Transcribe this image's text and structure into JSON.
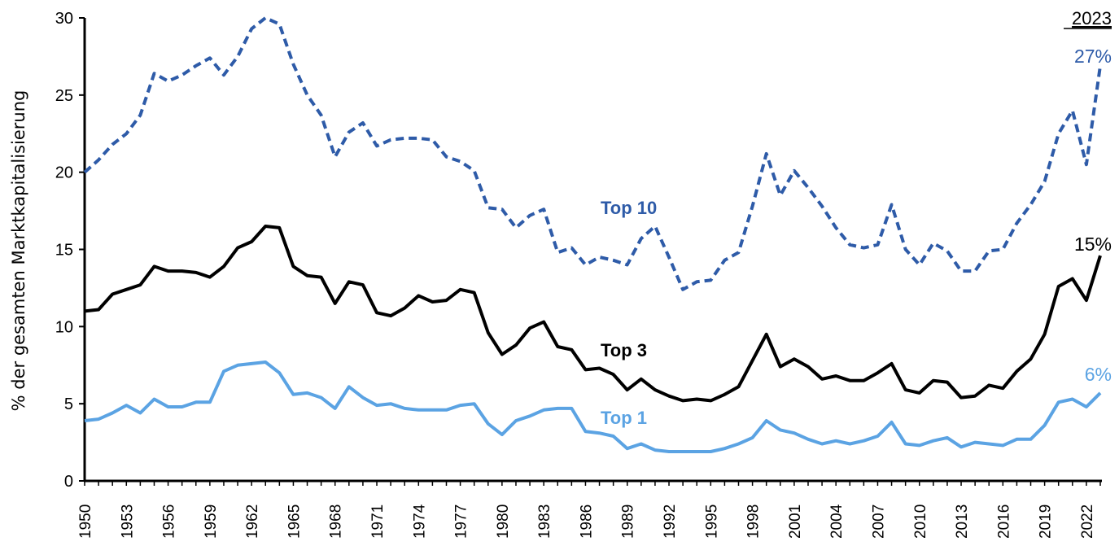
{
  "chart_data": {
    "type": "line",
    "title": "",
    "xlabel": "",
    "ylabel": "% der gesamten Marktkapitalisierung",
    "ylim": [
      0,
      30
    ],
    "yticks": [
      0,
      5,
      10,
      15,
      20,
      25,
      30
    ],
    "x": [
      1950,
      1951,
      1952,
      1953,
      1954,
      1955,
      1956,
      1957,
      1958,
      1959,
      1960,
      1961,
      1962,
      1963,
      1964,
      1965,
      1966,
      1967,
      1968,
      1969,
      1970,
      1971,
      1972,
      1973,
      1974,
      1975,
      1976,
      1977,
      1978,
      1979,
      1980,
      1981,
      1982,
      1983,
      1984,
      1985,
      1986,
      1987,
      1988,
      1989,
      1990,
      1991,
      1992,
      1993,
      1994,
      1995,
      1996,
      1997,
      1998,
      1999,
      2000,
      2001,
      2002,
      2003,
      2004,
      2005,
      2006,
      2007,
      2008,
      2009,
      2010,
      2011,
      2012,
      2013,
      2014,
      2015,
      2016,
      2017,
      2018,
      2019,
      2020,
      2021,
      2022,
      2023
    ],
    "xticks": [
      "1950",
      "1953",
      "1956",
      "1959",
      "1962",
      "1965",
      "1968",
      "1971",
      "1974",
      "1977",
      "1980",
      "1983",
      "1986",
      "1989",
      "1992",
      "1995",
      "1998",
      "2001",
      "2004",
      "2007",
      "2010",
      "2013",
      "2016",
      "2019",
      "2022"
    ],
    "grid": false,
    "series": [
      {
        "name": "Top 10",
        "color": "#2E5BA8",
        "style": "dashed",
        "values": [
          20.0,
          20.8,
          21.8,
          22.5,
          23.7,
          26.4,
          25.9,
          26.3,
          26.9,
          27.4,
          26.3,
          27.5,
          29.3,
          30.0,
          29.6,
          27.0,
          25.0,
          23.7,
          21.0,
          22.6,
          23.2,
          21.7,
          22.1,
          22.2,
          22.2,
          22.1,
          21.0,
          20.7,
          20.1,
          17.7,
          17.6,
          16.4,
          17.2,
          17.6,
          14.8,
          15.1,
          14.0,
          14.5,
          14.3,
          14.0,
          15.7,
          16.5,
          14.5,
          12.4,
          12.9,
          13.0,
          14.3,
          14.8,
          17.8,
          21.2,
          18.5,
          20.1,
          19.0,
          17.8,
          16.4,
          15.3,
          15.1,
          15.3,
          17.9,
          15.0,
          14.0,
          15.4,
          14.9,
          13.6,
          13.6,
          14.9,
          15.0,
          16.7,
          17.9,
          19.4,
          22.5,
          24.0,
          20.5,
          26.9
        ]
      },
      {
        "name": "Top 3",
        "color": "#000000",
        "style": "solid",
        "values": [
          11.0,
          11.1,
          12.1,
          12.4,
          12.7,
          13.9,
          13.6,
          13.6,
          13.5,
          13.2,
          13.9,
          15.1,
          15.5,
          16.5,
          16.4,
          13.9,
          13.3,
          13.2,
          11.5,
          12.9,
          12.7,
          10.9,
          10.7,
          11.2,
          12.0,
          11.6,
          11.7,
          12.4,
          12.2,
          9.6,
          8.2,
          8.8,
          9.9,
          10.3,
          8.7,
          8.5,
          7.2,
          7.3,
          6.9,
          5.9,
          6.6,
          5.9,
          5.5,
          5.2,
          5.3,
          5.2,
          5.6,
          6.1,
          7.8,
          9.5,
          7.4,
          7.9,
          7.4,
          6.6,
          6.8,
          6.5,
          6.5,
          7.0,
          7.6,
          5.9,
          5.7,
          6.5,
          6.4,
          5.4,
          5.5,
          6.2,
          6.0,
          7.1,
          7.9,
          9.5,
          12.6,
          13.1,
          11.7,
          14.6
        ]
      },
      {
        "name": "Top 1",
        "color": "#5BA3E3",
        "style": "solid",
        "values": [
          3.9,
          4.0,
          4.4,
          4.9,
          4.4,
          5.3,
          4.8,
          4.8,
          5.1,
          5.1,
          7.1,
          7.5,
          7.6,
          7.7,
          7.0,
          5.6,
          5.7,
          5.4,
          4.7,
          6.1,
          5.4,
          4.9,
          5.0,
          4.7,
          4.6,
          4.6,
          4.6,
          4.9,
          5.0,
          3.7,
          3.0,
          3.9,
          4.2,
          4.6,
          4.7,
          4.7,
          3.2,
          3.1,
          2.9,
          2.1,
          2.4,
          2.0,
          1.9,
          1.9,
          1.9,
          1.9,
          2.1,
          2.4,
          2.8,
          3.9,
          3.3,
          3.1,
          2.7,
          2.4,
          2.6,
          2.4,
          2.6,
          2.9,
          3.8,
          2.4,
          2.3,
          2.6,
          2.8,
          2.2,
          2.5,
          2.4,
          2.3,
          2.7,
          2.7,
          3.6,
          5.1,
          5.3,
          4.8,
          5.7
        ]
      }
    ],
    "series_labels": [
      "Top 10",
      "Top 3",
      "Top 1"
    ],
    "end_labels": [
      "27%",
      "15%",
      "6%"
    ],
    "end_year_label": "2023"
  }
}
